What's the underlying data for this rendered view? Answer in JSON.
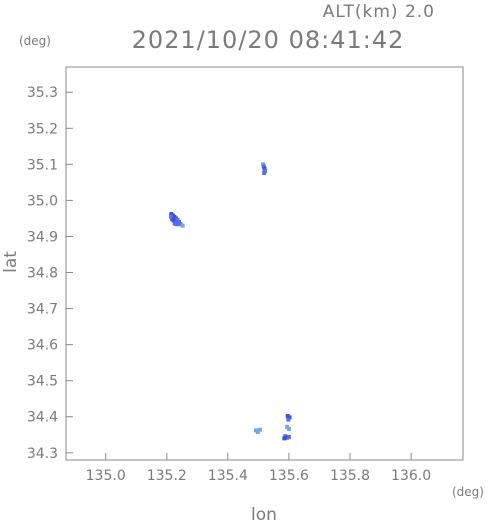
{
  "header": {
    "alt_label": "ALT(km)  2.0",
    "datetime": "2021/10/20  08:41:42"
  },
  "chart_data": {
    "type": "scatter",
    "xlabel": "lon",
    "ylabel": "lat",
    "x_unit": "(deg)",
    "y_unit": "(deg)",
    "xlim": [
      134.87,
      136.17
    ],
    "ylim": [
      34.28,
      35.37
    ],
    "x_ticks": [
      {
        "value": 135.0,
        "label": "135.0"
      },
      {
        "value": 135.2,
        "label": "135.2"
      },
      {
        "value": 135.4,
        "label": "135.4"
      },
      {
        "value": 135.6,
        "label": "135.6"
      },
      {
        "value": 135.8,
        "label": "135.8"
      },
      {
        "value": 136.0,
        "label": "136.0"
      }
    ],
    "y_ticks": [
      {
        "value": 34.3,
        "label": "34.3"
      },
      {
        "value": 34.4,
        "label": "34.4"
      },
      {
        "value": 34.5,
        "label": "34.5"
      },
      {
        "value": 34.6,
        "label": "34.6"
      },
      {
        "value": 34.7,
        "label": "34.7"
      },
      {
        "value": 34.8,
        "label": "34.8"
      },
      {
        "value": 34.9,
        "label": "34.9"
      },
      {
        "value": 35.0,
        "label": "35.0"
      },
      {
        "value": 35.1,
        "label": "35.1"
      },
      {
        "value": 35.2,
        "label": "35.2"
      },
      {
        "value": 35.3,
        "label": "35.3"
      }
    ],
    "grid": false,
    "colors": {
      "frame": "#8a8a8a",
      "label": "#7a7a7a",
      "echo_dark": "#3a4fd8",
      "echo_mid": "#5a6ee6",
      "echo_light": "#6fa8e8"
    },
    "points": [
      {
        "lon": 135.215,
        "lat": 34.962,
        "level": "dark"
      },
      {
        "lon": 135.22,
        "lat": 34.958,
        "level": "dark"
      },
      {
        "lon": 135.225,
        "lat": 34.954,
        "level": "dark"
      },
      {
        "lon": 135.23,
        "lat": 34.95,
        "level": "dark"
      },
      {
        "lon": 135.218,
        "lat": 34.948,
        "level": "dark"
      },
      {
        "lon": 135.222,
        "lat": 34.944,
        "level": "dark"
      },
      {
        "lon": 135.228,
        "lat": 34.942,
        "level": "dark"
      },
      {
        "lon": 135.235,
        "lat": 34.946,
        "level": "mid"
      },
      {
        "lon": 135.24,
        "lat": 34.94,
        "level": "mid"
      },
      {
        "lon": 135.226,
        "lat": 34.936,
        "level": "mid"
      },
      {
        "lon": 135.232,
        "lat": 34.934,
        "level": "mid"
      },
      {
        "lon": 135.245,
        "lat": 34.934,
        "level": "mid"
      },
      {
        "lon": 135.214,
        "lat": 34.955,
        "level": "mid"
      },
      {
        "lon": 135.252,
        "lat": 34.93,
        "level": "light"
      },
      {
        "lon": 135.515,
        "lat": 35.1,
        "level": "light"
      },
      {
        "lon": 135.518,
        "lat": 35.094,
        "level": "mid"
      },
      {
        "lon": 135.52,
        "lat": 35.088,
        "level": "dark"
      },
      {
        "lon": 135.522,
        "lat": 35.082,
        "level": "mid"
      },
      {
        "lon": 135.519,
        "lat": 35.076,
        "level": "mid"
      },
      {
        "lon": 135.596,
        "lat": 34.402,
        "level": "dark"
      },
      {
        "lon": 135.602,
        "lat": 34.398,
        "level": "dark"
      },
      {
        "lon": 135.598,
        "lat": 34.392,
        "level": "mid"
      },
      {
        "lon": 135.594,
        "lat": 34.372,
        "level": "light"
      },
      {
        "lon": 135.6,
        "lat": 34.366,
        "level": "light"
      },
      {
        "lon": 135.588,
        "lat": 34.346,
        "level": "mid"
      },
      {
        "lon": 135.594,
        "lat": 34.342,
        "level": "dark"
      },
      {
        "lon": 135.585,
        "lat": 34.34,
        "level": "dark"
      },
      {
        "lon": 135.6,
        "lat": 34.344,
        "level": "mid"
      },
      {
        "lon": 135.492,
        "lat": 34.362,
        "level": "light"
      },
      {
        "lon": 135.498,
        "lat": 34.358,
        "level": "light"
      },
      {
        "lon": 135.505,
        "lat": 34.364,
        "level": "light"
      }
    ]
  }
}
